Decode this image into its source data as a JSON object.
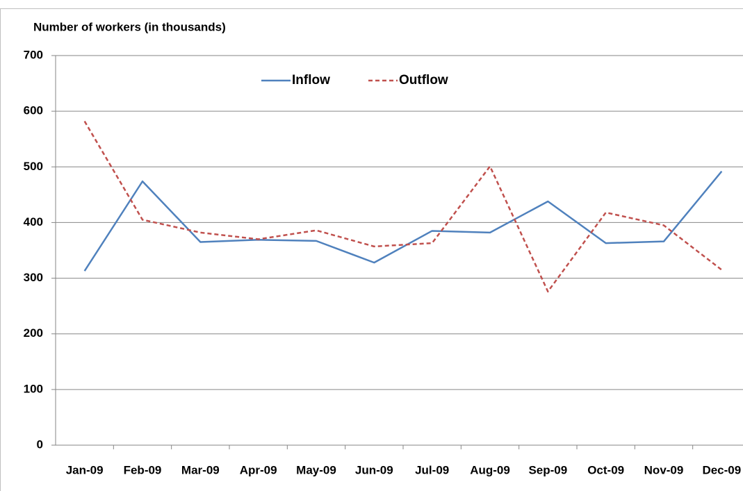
{
  "chart_data": {
    "type": "line",
    "y_axis_label": "Number of workers (in thousands)",
    "categories": [
      "Jan-09",
      "Feb-09",
      "Mar-09",
      "Apr-09",
      "May-09",
      "Jun-09",
      "Jul-09",
      "Aug-09",
      "Sep-09",
      "Oct-09",
      "Nov-09",
      "Dec-09"
    ],
    "series": [
      {
        "name": "Inflow",
        "color": "#4f81bd",
        "dashed": false,
        "values": [
          313,
          474,
          365,
          369,
          367,
          328,
          385,
          382,
          438,
          363,
          366,
          492
        ]
      },
      {
        "name": "Outflow",
        "color": "#c0504d",
        "dashed": true,
        "values": [
          582,
          405,
          382,
          370,
          386,
          357,
          363,
          501,
          276,
          418,
          395,
          315
        ]
      }
    ],
    "ylim": [
      0,
      700
    ],
    "yticks": [
      0,
      100,
      200,
      300,
      400,
      500,
      600,
      700
    ],
    "grid": true,
    "legend": "top"
  }
}
